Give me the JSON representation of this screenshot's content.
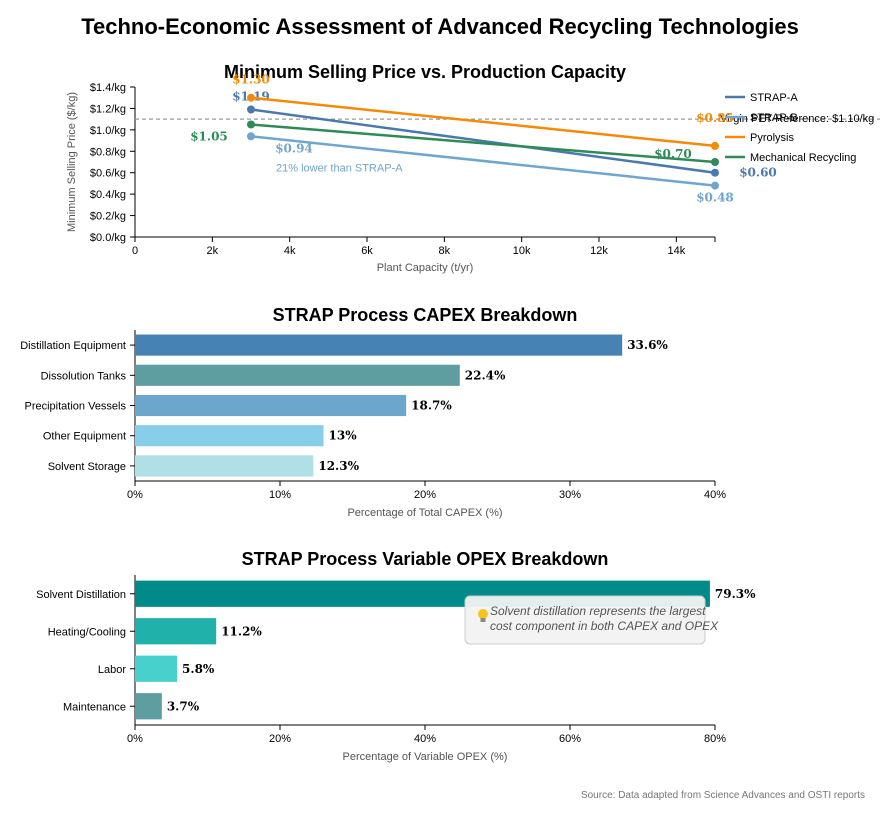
{
  "page_title": "Techno-Economic Assessment of Advanced Recycling Technologies",
  "source_note": "Source: Data adapted from Science Advances and OSTI reports",
  "chart_data": [
    {
      "type": "line",
      "title": "Minimum Selling Price vs. Production Capacity",
      "xlabel": "Plant Capacity (t/yr)",
      "ylabel": "Minimum Selling Price ($/kg)",
      "xlim": [
        0,
        15000
      ],
      "ylim": [
        0,
        1.4
      ],
      "x_ticks": [
        0,
        2000,
        4000,
        6000,
        8000,
        10000,
        12000,
        14000
      ],
      "x_tick_labels": [
        "0",
        "2k",
        "4k",
        "6k",
        "8k",
        "10k",
        "12k",
        "14k"
      ],
      "y_ticks": [
        0,
        0.2,
        0.4,
        0.6,
        0.8,
        1.0,
        1.2,
        1.4
      ],
      "y_tick_labels": [
        "$0.0/kg",
        "$0.2/kg",
        "$0.4/kg",
        "$0.6/kg",
        "$0.8/kg",
        "$1.0/kg",
        "$1.2/kg",
        "$1.4/kg"
      ],
      "grid": false,
      "legend_position": "top-right",
      "reference_line": {
        "y": 1.1,
        "label": "Virgin PET Reference: $1.10/kg"
      },
      "annotation": {
        "text": "21% lower than STRAP-A",
        "series": "STRAP-B"
      },
      "series": [
        {
          "name": "STRAP-A",
          "color": "#4a79ad",
          "x": [
            3000,
            15000
          ],
          "values": [
            1.19,
            0.6
          ],
          "labels": [
            "$1.19",
            "$0.60"
          ]
        },
        {
          "name": "STRAP-B",
          "color": "#6fa5cf",
          "x": [
            3000,
            15000
          ],
          "values": [
            0.94,
            0.48
          ],
          "labels": [
            "$0.94",
            "$0.48"
          ]
        },
        {
          "name": "Pyrolysis",
          "color": "#f58a07",
          "x": [
            3000,
            15000
          ],
          "values": [
            1.3,
            0.85
          ],
          "labels": [
            "$1.30",
            "$0.85"
          ]
        },
        {
          "name": "Mechanical Recycling",
          "color": "#2e8b57",
          "x": [
            3000,
            15000
          ],
          "values": [
            1.05,
            0.7
          ],
          "labels": [
            "$1.05",
            "$0.70"
          ]
        }
      ]
    },
    {
      "type": "bar",
      "orientation": "horizontal",
      "title": "STRAP Process CAPEX Breakdown",
      "xlabel": "Percentage of Total CAPEX (%)",
      "xlim": [
        0,
        40
      ],
      "x_ticks": [
        0,
        10,
        20,
        30,
        40
      ],
      "x_tick_labels": [
        "0%",
        "10%",
        "20%",
        "30%",
        "40%"
      ],
      "categories": [
        "Distillation Equipment",
        "Dissolution Tanks",
        "Precipitation Vessels",
        "Other Equipment",
        "Solvent Storage"
      ],
      "values": [
        33.6,
        22.4,
        18.7,
        13,
        12.3
      ],
      "value_labels": [
        "33.6%",
        "22.4%",
        "18.7%",
        "13%",
        "12.3%"
      ],
      "colors": [
        "#4682b4",
        "#5f9ea0",
        "#6ca6cd",
        "#87ceeb",
        "#b0e0e6"
      ]
    },
    {
      "type": "bar",
      "orientation": "horizontal",
      "title": "STRAP Process Variable OPEX Breakdown",
      "xlabel": "Percentage of Variable OPEX (%)",
      "xlim": [
        0,
        80
      ],
      "x_ticks": [
        0,
        20,
        40,
        60,
        80
      ],
      "x_tick_labels": [
        "0%",
        "20%",
        "40%",
        "60%",
        "80%"
      ],
      "categories": [
        "Solvent Distillation",
        "Heating/Cooling",
        "Labor",
        "Maintenance"
      ],
      "values": [
        79.3,
        11.2,
        5.8,
        3.7
      ],
      "value_labels": [
        "79.3%",
        "11.2%",
        "5.8%",
        "3.7%"
      ],
      "colors": [
        "#008b8b",
        "#20b2aa",
        "#48d1cc",
        "#5f9ea0"
      ],
      "callout": {
        "icon": "lightbulb-icon",
        "text_lines": [
          "Solvent distillation represents the largest",
          "cost component in both CAPEX and OPEX"
        ]
      }
    }
  ]
}
